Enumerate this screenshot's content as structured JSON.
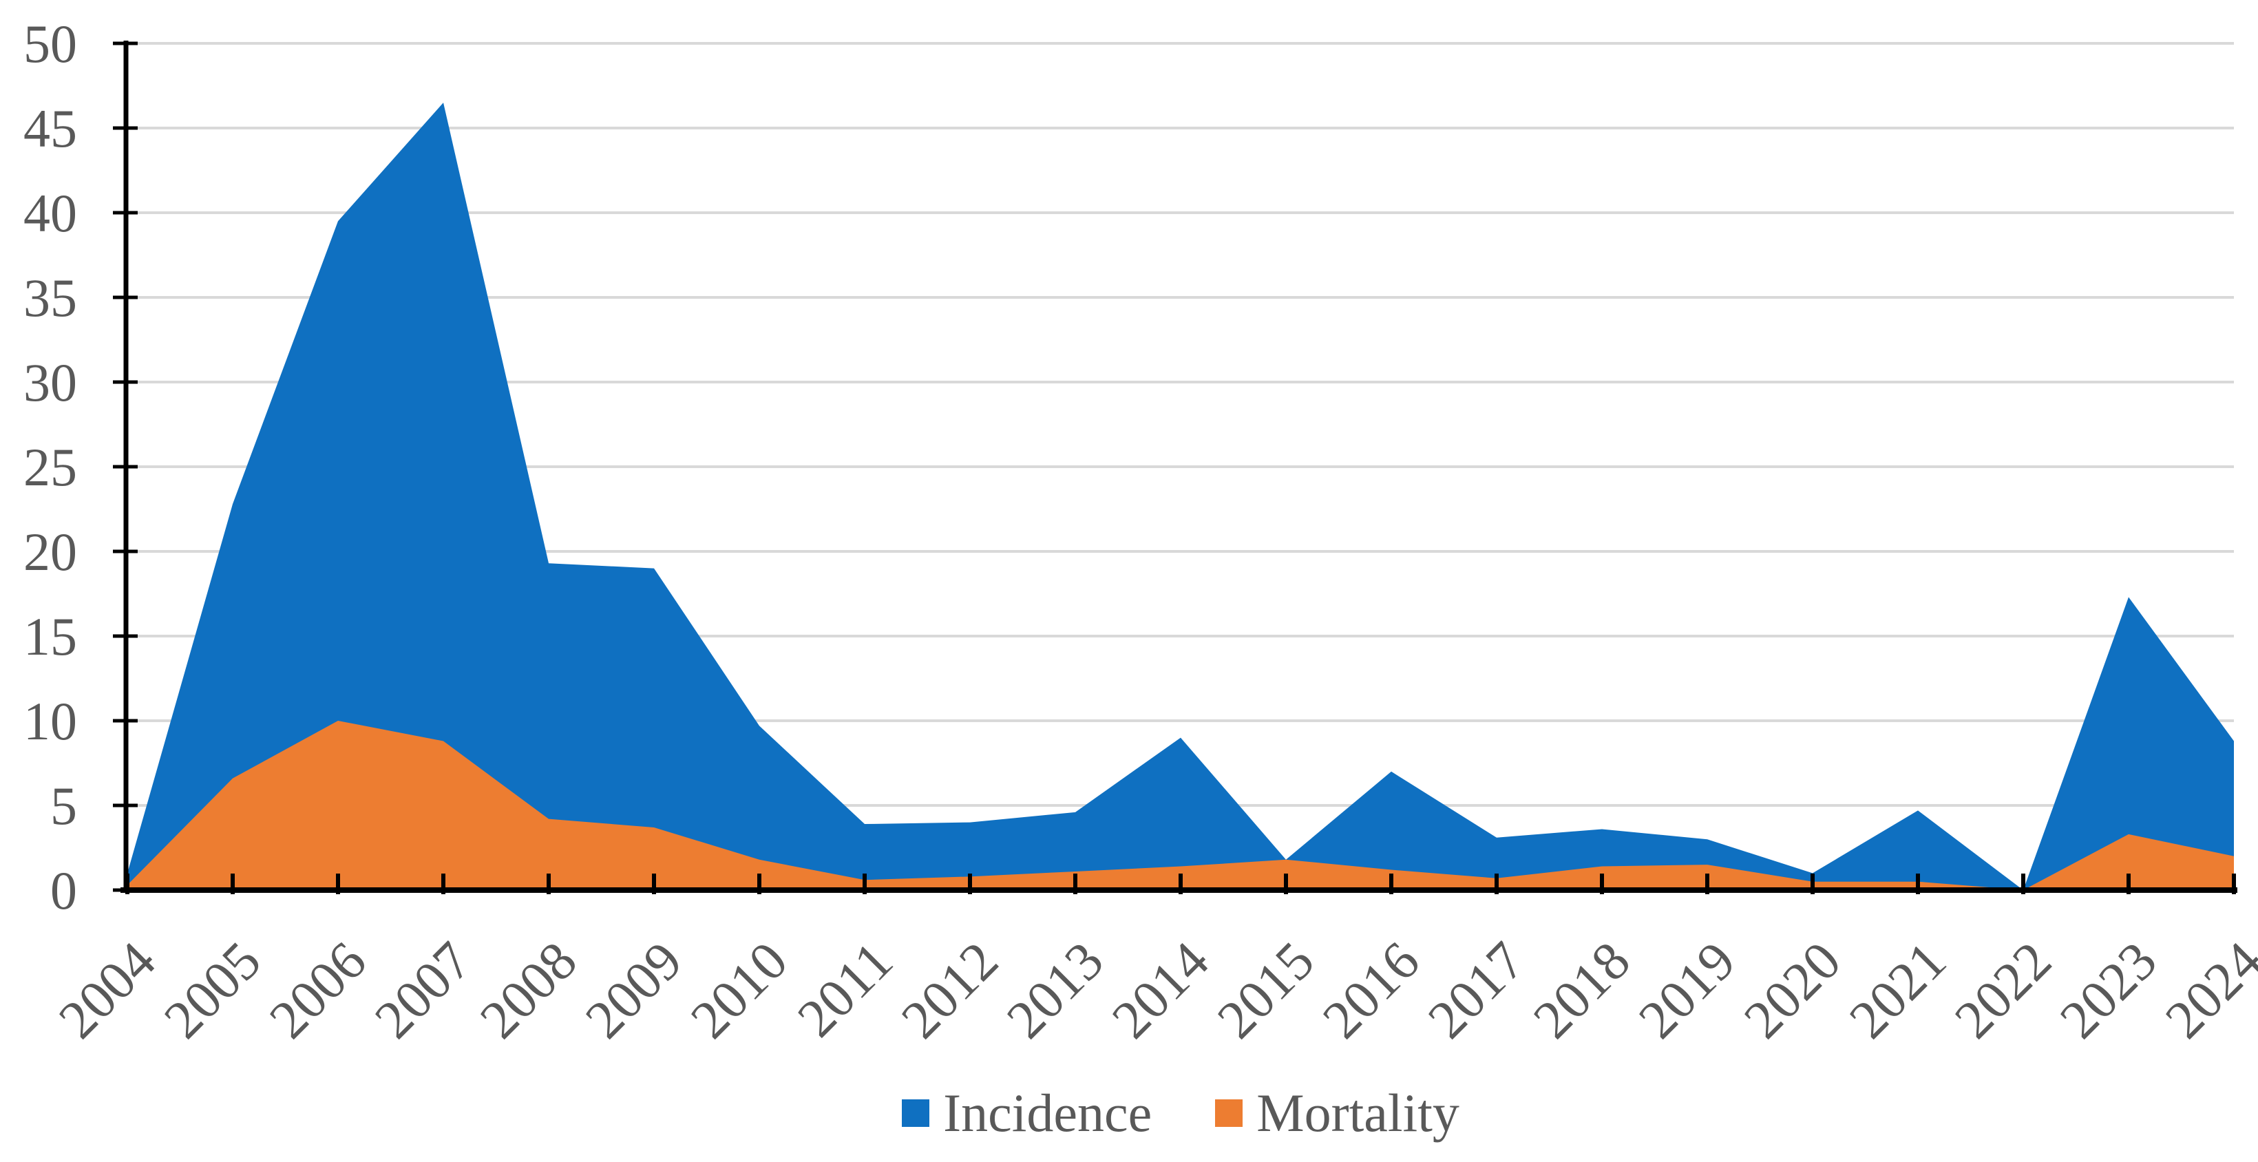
{
  "chart_data": {
    "type": "area",
    "title": "",
    "xlabel": "",
    "ylabel": "",
    "x": [
      2004,
      2005,
      2006,
      2007,
      2008,
      2009,
      2010,
      2011,
      2012,
      2013,
      2014,
      2015,
      2016,
      2017,
      2018,
      2019,
      2020,
      2021,
      2022,
      2023,
      2024
    ],
    "series": [
      {
        "name": "Incidence",
        "color": "#0F70C1",
        "values": [
          1,
          22.8,
          39.5,
          46.5,
          19.3,
          19,
          9.7,
          3.9,
          4,
          4.6,
          9,
          1.8,
          7,
          3.1,
          3.6,
          3,
          1,
          4.7,
          0,
          17.3,
          8.8
        ]
      },
      {
        "name": "Mortality",
        "color": "#ED7D31",
        "values": [
          0.3,
          6.6,
          10,
          8.8,
          4.2,
          3.7,
          1.8,
          0.6,
          0.8,
          1.1,
          1.4,
          1.8,
          1.2,
          0.7,
          1.4,
          1.5,
          0.5,
          0.5,
          0,
          3.3,
          2
        ]
      }
    ],
    "ylim": [
      0,
      50
    ],
    "y_ticks": [
      0,
      5,
      10,
      15,
      20,
      25,
      30,
      35,
      40,
      45,
      50
    ],
    "grid": "horizontal",
    "legend_position": "bottom",
    "overlay": true
  },
  "style": {
    "grid_color": "#D9D9D9",
    "axis_color": "#000000",
    "label_color": "#595959"
  },
  "legend": {
    "incidence_label": "Incidence",
    "mortality_label": "Mortality"
  }
}
